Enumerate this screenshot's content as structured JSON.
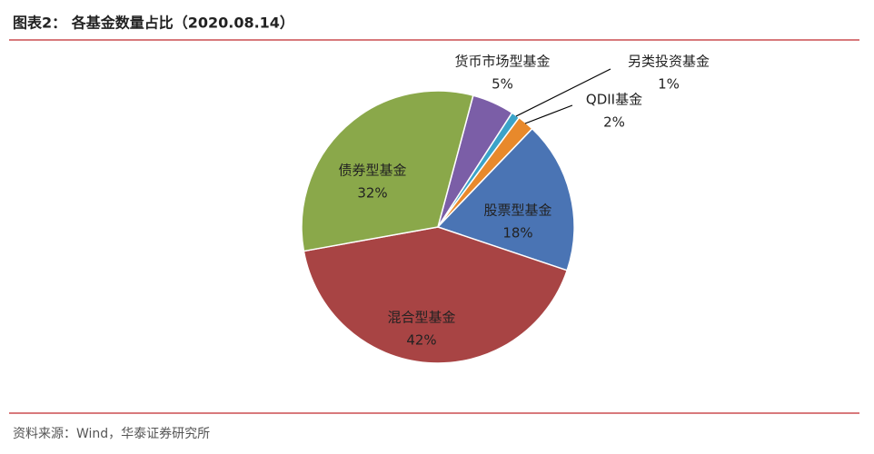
{
  "chart_data": {
    "type": "pie",
    "title": "图表2：  各基金数量占比（2020.08.14）",
    "source": "资料来源：Wind，华泰证券研究所",
    "categories": [
      "货币市场型基金",
      "另类投资基金",
      "QDII基金",
      "股票型基金",
      "混合型基金",
      "债券型基金"
    ],
    "values": [
      5,
      1,
      2,
      18,
      42,
      32
    ],
    "value_labels": [
      "5%",
      "1%",
      "2%",
      "18%",
      "42%",
      "32%"
    ],
    "colors": [
      "#7b5ea7",
      "#3ba3c8",
      "#e8892b",
      "#4a74b4",
      "#a84444",
      "#8aa84a"
    ]
  }
}
